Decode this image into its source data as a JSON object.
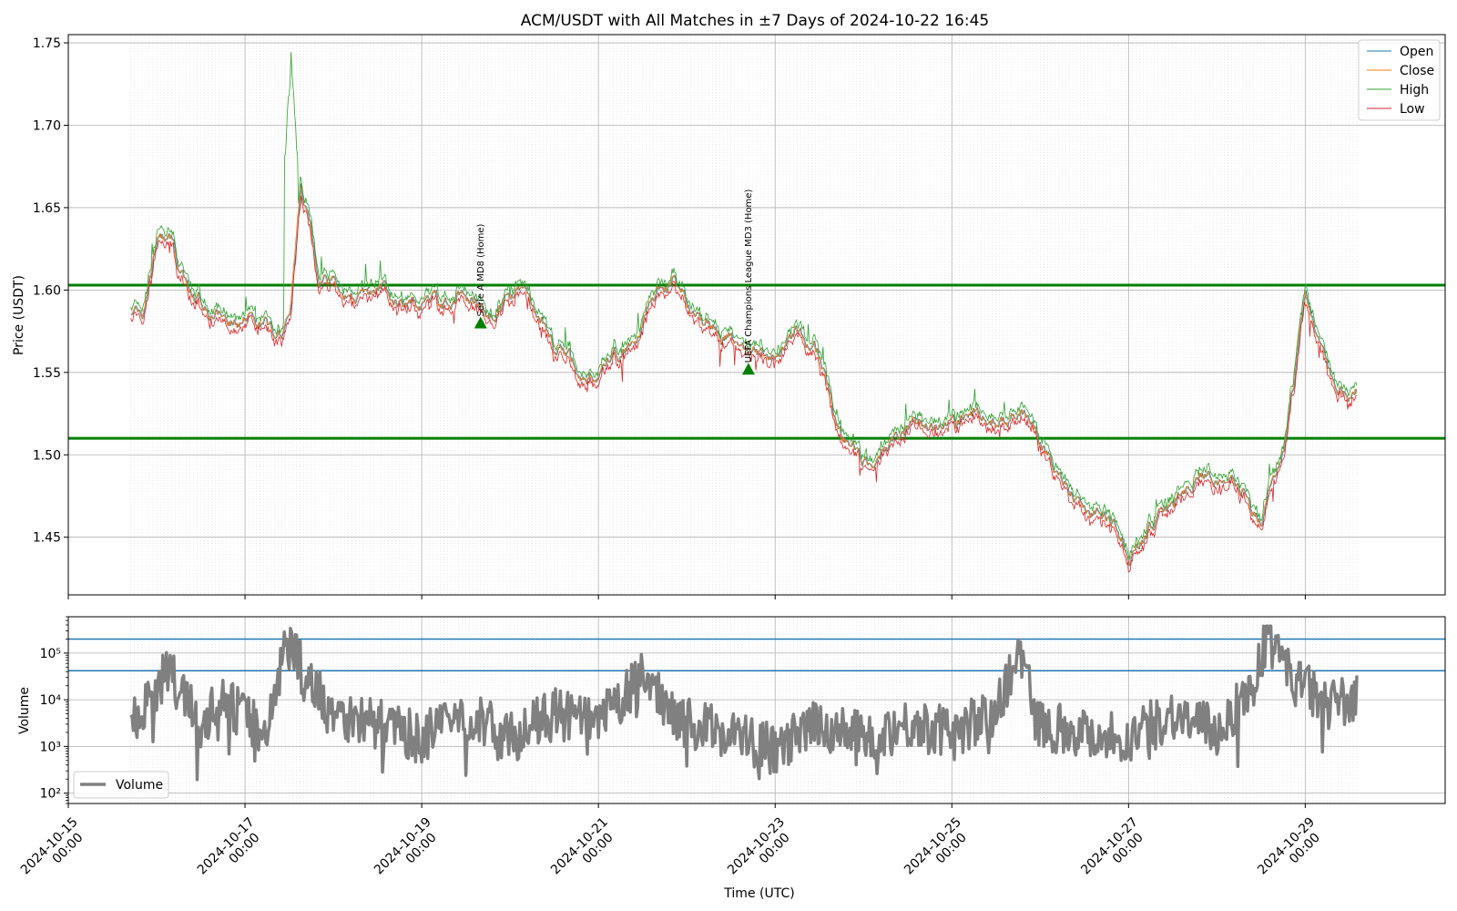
{
  "chart_data": [
    {
      "type": "line",
      "title": "ACM/USDT with All Matches in ±7 Days of 2024-10-22 16:45",
      "ylabel": "Price (USDT)",
      "xlabel": "Time (UTC)",
      "xlim": [
        "2024-10-15 00:00",
        "2024-10-30 14:00"
      ],
      "ylim": [
        1.415,
        1.755
      ],
      "yticks": [
        1.45,
        1.5,
        1.55,
        1.6,
        1.65,
        1.7,
        1.75
      ],
      "grid": true,
      "legend": "top-right",
      "series": [
        {
          "name": "Open",
          "color": "#1f77b4"
        },
        {
          "name": "Close",
          "color": "#ff7f0e"
        },
        {
          "name": "High",
          "color": "#2ca02c"
        },
        {
          "name": "Low",
          "color": "#d62728"
        }
      ],
      "x": [
        "2024-10-15 17:00",
        "2024-10-15 20:00",
        "2024-10-16 00:00",
        "2024-10-16 04:00",
        "2024-10-16 08:00",
        "2024-10-16 14:00",
        "2024-10-16 20:00",
        "2024-10-17 04:00",
        "2024-10-17 10:00",
        "2024-10-17 12:00",
        "2024-10-17 15:00",
        "2024-10-17 20:00",
        "2024-10-18 06:00",
        "2024-10-18 14:00",
        "2024-10-18 22:00",
        "2024-10-19 06:00",
        "2024-10-19 10:00",
        "2024-10-19 18:00",
        "2024-10-20 02:00",
        "2024-10-20 06:00",
        "2024-10-20 12:00",
        "2024-10-20 20:00",
        "2024-10-21 04:00",
        "2024-10-21 10:00",
        "2024-10-21 14:00",
        "2024-10-21 20:00",
        "2024-10-22 04:00",
        "2024-10-22 12:00",
        "2024-10-22 18:00",
        "2024-10-23 00:00",
        "2024-10-23 06:00",
        "2024-10-23 12:00",
        "2024-10-23 18:00",
        "2024-10-24 00:00",
        "2024-10-24 12:00",
        "2024-10-25 00:00",
        "2024-10-25 06:00",
        "2024-10-25 12:00",
        "2024-10-25 20:00",
        "2024-10-26 00:00",
        "2024-10-26 12:00",
        "2024-10-26 18:00",
        "2024-10-27 00:00",
        "2024-10-27 08:00",
        "2024-10-27 12:00",
        "2024-10-27 20:00",
        "2024-10-28 04:00",
        "2024-10-28 08:00",
        "2024-10-28 12:00",
        "2024-10-28 14:00",
        "2024-10-28 18:00",
        "2024-10-29 00:00",
        "2024-10-29 08:00",
        "2024-10-29 14:00"
      ],
      "close": [
        1.588,
        1.585,
        1.625,
        1.628,
        1.6,
        1.59,
        1.582,
        1.58,
        1.578,
        1.585,
        1.665,
        1.61,
        1.595,
        1.6,
        1.588,
        1.59,
        1.6,
        1.585,
        1.598,
        1.592,
        1.565,
        1.548,
        1.56,
        1.568,
        1.6,
        1.605,
        1.58,
        1.57,
        1.56,
        1.558,
        1.575,
        1.56,
        1.512,
        1.495,
        1.518,
        1.515,
        1.525,
        1.52,
        1.525,
        1.505,
        1.462,
        1.46,
        1.44,
        1.465,
        1.47,
        1.49,
        1.485,
        1.478,
        1.462,
        1.48,
        1.5,
        1.598,
        1.535,
        1.54
      ],
      "high_peak": {
        "x": "2024-10-17 12:30",
        "value": 1.74
      },
      "hlines": [
        1.603,
        1.51
      ],
      "annotations": [
        {
          "text": "Serie A MD8 (Home)",
          "x": "2024-10-19 16:00",
          "y": 1.58,
          "marker": "triangle",
          "color": "#008000"
        },
        {
          "text": "UEFA Champions League MD3 (Home)",
          "x": "2024-10-22 16:45",
          "y": 1.552,
          "marker": "triangle",
          "color": "#008000"
        }
      ],
      "xtick_labels": [
        {
          "date": "2024-10-15",
          "time": "00:00"
        },
        {
          "date": "2024-10-17",
          "time": "00:00"
        },
        {
          "date": "2024-10-19",
          "time": "00:00"
        },
        {
          "date": "2024-10-21",
          "time": "00:00"
        },
        {
          "date": "2024-10-23",
          "time": "00:00"
        },
        {
          "date": "2024-10-25",
          "time": "00:00"
        },
        {
          "date": "2024-10-27",
          "time": "00:00"
        },
        {
          "date": "2024-10-29",
          "time": "00:00"
        }
      ]
    },
    {
      "type": "line",
      "ylabel": "Volume",
      "yscale": "log",
      "ylim": [
        60,
        600000
      ],
      "yticks": [
        "10²",
        "10³",
        "10⁴",
        "10⁵"
      ],
      "grid": true,
      "legend": "bottom-left",
      "series": [
        {
          "name": "Volume",
          "color": "#808080"
        }
      ],
      "x": [
        "2024-10-15 17:00",
        "2024-10-16 03:00",
        "2024-10-16 12:00",
        "2024-10-16 18:00",
        "2024-10-17 06:00",
        "2024-10-17 12:00",
        "2024-10-17 16:00",
        "2024-10-18 02:00",
        "2024-10-18 12:00",
        "2024-10-19 00:00",
        "2024-10-19 12:00",
        "2024-10-20 00:00",
        "2024-10-20 12:00",
        "2024-10-21 00:00",
        "2024-10-21 12:00",
        "2024-10-22 00:00",
        "2024-10-22 12:00",
        "2024-10-23 00:00",
        "2024-10-23 12:00",
        "2024-10-24 00:00",
        "2024-10-24 12:00",
        "2024-10-25 00:00",
        "2024-10-25 12:00",
        "2024-10-25 18:00",
        "2024-10-26 00:00",
        "2024-10-26 12:00",
        "2024-10-27 00:00",
        "2024-10-27 12:00",
        "2024-10-28 00:00",
        "2024-10-28 10:00",
        "2024-10-28 14:00",
        "2024-10-28 20:00",
        "2024-10-29 06:00",
        "2024-10-29 14:00"
      ],
      "values": [
        3000,
        40000,
        3000,
        10000,
        2000,
        350000,
        30000,
        5000,
        3000,
        1500,
        5000,
        1500,
        5000,
        3000,
        30000,
        3000,
        2000,
        800,
        3000,
        1500,
        3000,
        2000,
        5000,
        120000,
        3000,
        2000,
        1500,
        5000,
        2000,
        20000,
        350000,
        30000,
        8000,
        10000
      ],
      "hlines": [
        200000,
        42000
      ]
    }
  ]
}
